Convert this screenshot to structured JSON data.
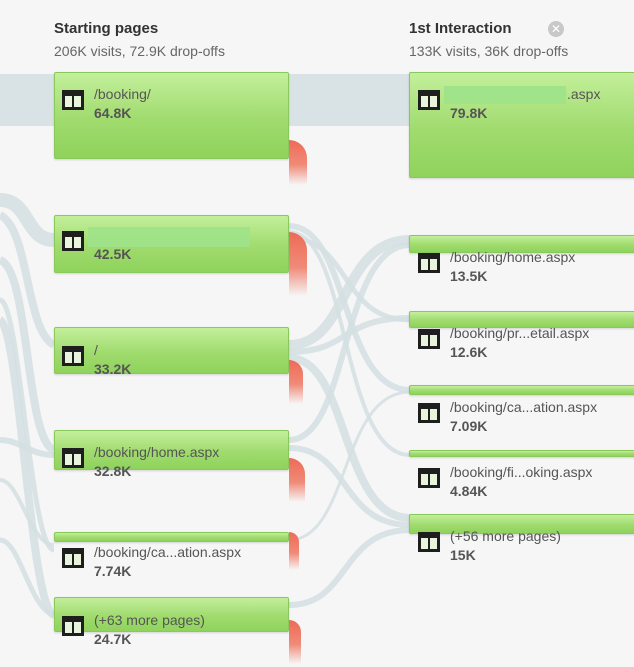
{
  "columns": [
    {
      "title": "Starting pages",
      "subtitle": "206K visits, 72.9K drop-offs",
      "nodes": [
        {
          "name": "/booking/",
          "visits": "64.8K"
        },
        {
          "name": "",
          "visits": "42.5K"
        },
        {
          "name": "/",
          "visits": "33.2K"
        },
        {
          "name": "/booking/home.aspx",
          "visits": "32.8K"
        },
        {
          "name": "/booking/ca...ation.aspx",
          "visits": "7.74K"
        },
        {
          "name": "(+63 more pages)",
          "visits": "24.7K"
        }
      ]
    },
    {
      "title": "1st Interaction",
      "subtitle": "133K visits, 36K drop-offs",
      "close_icon": "close-circle-icon",
      "nodes": [
        {
          "name": ".aspx",
          "visits": "79.8K"
        },
        {
          "name": "/booking/home.aspx",
          "visits": "13.5K"
        },
        {
          "name": "/booking/pr...etail.aspx",
          "visits": "12.6K"
        },
        {
          "name": "/booking/ca...ation.aspx",
          "visits": "7.09K"
        },
        {
          "name": "/booking/fi...oking.aspx",
          "visits": "4.84K"
        },
        {
          "name": "(+56 more pages)",
          "visits": "15K"
        }
      ]
    }
  ],
  "colors": {
    "node_green": "#9fdb6e",
    "dropoff_red": "#ee6b57",
    "flow": "#d5e0e3",
    "background": "#f6f6f6"
  },
  "icons": {
    "page": "page-table-icon",
    "close": "close-circle-icon"
  }
}
